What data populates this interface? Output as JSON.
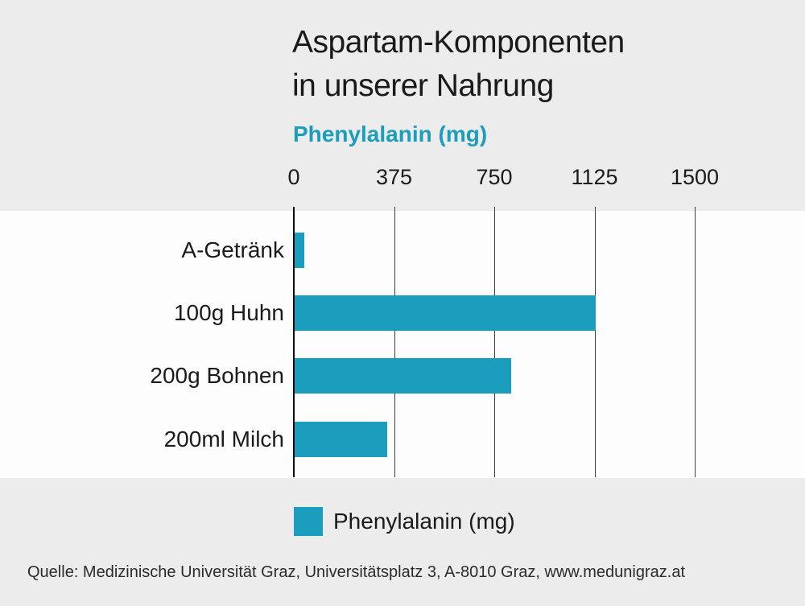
{
  "page": {
    "background_color": "#ececec",
    "plot_background_color": "#fdfdfd"
  },
  "header": {
    "title_line1": "Aspartam-Komponenten",
    "title_line2": "in unserer Nahrung",
    "subtitle": "Phenylalanin (mg)",
    "subtitle_color": "#1b9ebe"
  },
  "legend": {
    "label": "Phenylalanin (mg)",
    "swatch_color": "#1b9ebe"
  },
  "source": {
    "text": "Quelle: Medizinische Universität Graz, Universitätsplatz 3, A-8010 Graz, www.medunigraz.at"
  },
  "chart_data": {
    "type": "bar",
    "orientation": "horizontal",
    "title": "Aspartam-Komponenten in unserer Nahrung",
    "subtitle": "Phenylalanin (mg)",
    "categories": [
      "A-Getränk",
      "100g Huhn",
      "200g Bohnen",
      "200ml Milch"
    ],
    "series": [
      {
        "name": "Phenylalanin (mg)",
        "values": [
          35,
          1125,
          810,
          345
        ]
      }
    ],
    "xlabel": "Phenylalanin (mg)",
    "ylabel": "",
    "xlim": [
      0,
      1500
    ],
    "xticks": [
      0,
      375,
      750,
      1125,
      1500
    ],
    "grid": true,
    "bar_color": "#1b9ebe",
    "legend_position": "bottom",
    "source": "Quelle: Medizinische Universität Graz, Universitätsplatz 3, A-8010 Graz, www.medunigraz.at"
  }
}
